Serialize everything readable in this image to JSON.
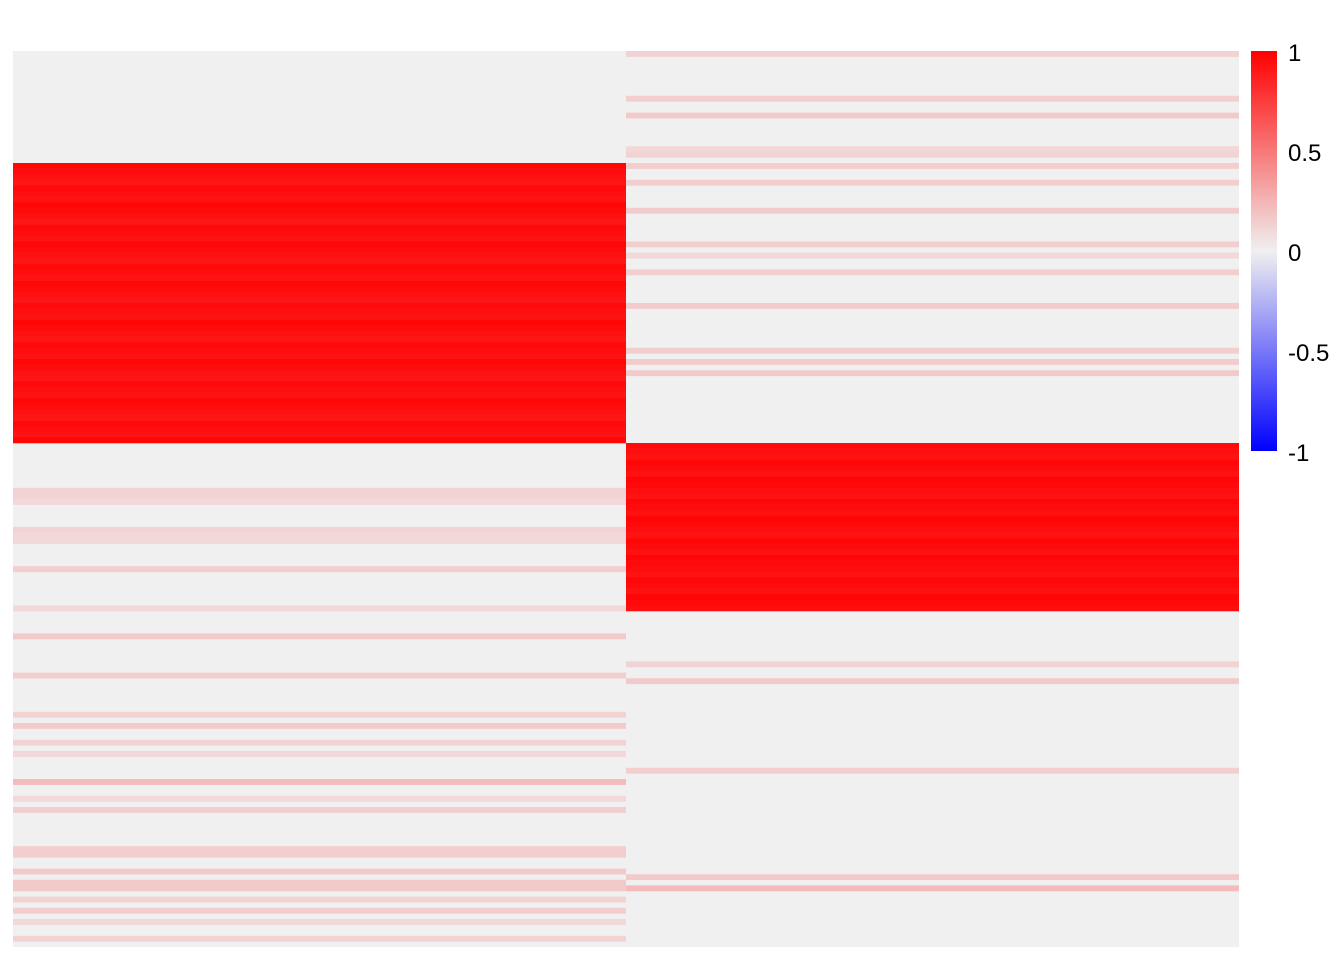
{
  "chart_data": {
    "type": "heatmap",
    "title": "",
    "xlabel": "",
    "ylabel": "",
    "n_columns": 2,
    "n_rows": 160,
    "grid": false,
    "colors": {
      "low": "#0000FF",
      "mid": "#F0F0F0",
      "high": "#FF0000"
    },
    "colorbar": {
      "range": [
        -1,
        1
      ],
      "ticks": [
        1,
        0.5,
        0,
        -0.5,
        -1
      ],
      "tick_labels": [
        "1",
        "0.5",
        "0",
        "-0.5",
        "-1"
      ],
      "placement": "right"
    },
    "blocks": [
      {
        "column": 1,
        "row_range": [
          21,
          70
        ],
        "value": 0.97
      },
      {
        "column": 2,
        "row_range": [
          71,
          100
        ],
        "value": 0.98
      }
    ],
    "columns": [
      {
        "weak_rows": [
          {
            "row": 79,
            "value": 0.12
          },
          {
            "row": 80,
            "value": 0.12
          },
          {
            "row": 81,
            "value": 0.1
          },
          {
            "row": 86,
            "value": 0.12
          },
          {
            "row": 87,
            "value": 0.1
          },
          {
            "row": 88,
            "value": 0.1
          },
          {
            "row": 93,
            "value": 0.14
          },
          {
            "row": 100,
            "value": 0.1
          },
          {
            "row": 105,
            "value": 0.16
          },
          {
            "row": 112,
            "value": 0.14
          },
          {
            "row": 119,
            "value": 0.12
          },
          {
            "row": 121,
            "value": 0.15
          },
          {
            "row": 124,
            "value": 0.12
          },
          {
            "row": 126,
            "value": 0.1
          },
          {
            "row": 131,
            "value": 0.22
          },
          {
            "row": 134,
            "value": 0.1
          },
          {
            "row": 136,
            "value": 0.14
          },
          {
            "row": 143,
            "value": 0.14
          },
          {
            "row": 144,
            "value": 0.14
          },
          {
            "row": 147,
            "value": 0.16
          },
          {
            "row": 149,
            "value": 0.16
          },
          {
            "row": 150,
            "value": 0.16
          },
          {
            "row": 152,
            "value": 0.12
          },
          {
            "row": 154,
            "value": 0.14
          },
          {
            "row": 156,
            "value": 0.1
          },
          {
            "row": 159,
            "value": 0.12
          }
        ]
      },
      {
        "weak_rows": [
          {
            "row": 1,
            "value": 0.12
          },
          {
            "row": 9,
            "value": 0.14
          },
          {
            "row": 12,
            "value": 0.16
          },
          {
            "row": 18,
            "value": 0.1
          },
          {
            "row": 19,
            "value": 0.12
          },
          {
            "row": 21,
            "value": 0.14
          },
          {
            "row": 24,
            "value": 0.14
          },
          {
            "row": 29,
            "value": 0.15
          },
          {
            "row": 35,
            "value": 0.14
          },
          {
            "row": 37,
            "value": 0.1
          },
          {
            "row": 40,
            "value": 0.14
          },
          {
            "row": 46,
            "value": 0.15
          },
          {
            "row": 54,
            "value": 0.14
          },
          {
            "row": 56,
            "value": 0.15
          },
          {
            "row": 58,
            "value": 0.16
          },
          {
            "row": 110,
            "value": 0.12
          },
          {
            "row": 113,
            "value": 0.16
          },
          {
            "row": 129,
            "value": 0.14
          },
          {
            "row": 148,
            "value": 0.16
          },
          {
            "row": 150,
            "value": 0.22
          }
        ]
      }
    ]
  }
}
